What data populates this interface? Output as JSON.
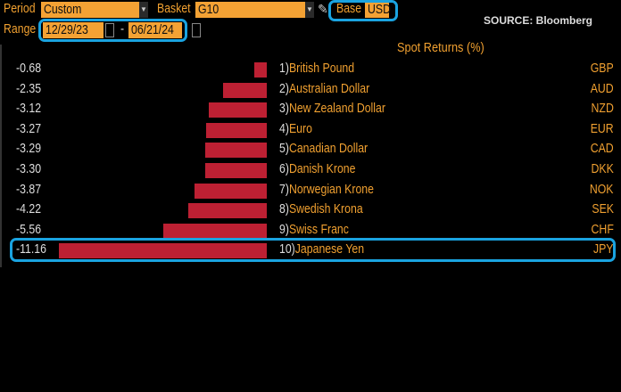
{
  "header": {
    "period_label": "Period",
    "period_value": "Custom",
    "basket_label": "Basket",
    "basket_value": "G10",
    "base_label": "Base",
    "base_value": "USD",
    "range_label": "Range",
    "range_start": "12/29/23",
    "range_separator": "-",
    "range_end": "06/21/24",
    "source": "SOURCE: Bloomberg"
  },
  "colors": {
    "bar": "#bd2033",
    "highlight": "#1aa3e0",
    "field": "#f4a234"
  },
  "chart_data": {
    "type": "bar",
    "title": "Spot Returns (%)",
    "orientation": "horizontal",
    "rows": [
      {
        "rank": "1)",
        "name": "British Pound",
        "code": "GBP",
        "value": -0.68,
        "label": "-0.68"
      },
      {
        "rank": "2)",
        "name": "Australian Dollar",
        "code": "AUD",
        "value": -2.35,
        "label": "-2.35"
      },
      {
        "rank": "3)",
        "name": "New Zealand Dollar",
        "code": "NZD",
        "value": -3.12,
        "label": "-3.12"
      },
      {
        "rank": "4)",
        "name": "Euro",
        "code": "EUR",
        "value": -3.27,
        "label": "-3.27"
      },
      {
        "rank": "5)",
        "name": "Canadian Dollar",
        "code": "CAD",
        "value": -3.29,
        "label": "-3.29"
      },
      {
        "rank": "6)",
        "name": "Danish Krone",
        "code": "DKK",
        "value": -3.3,
        "label": "-3.30"
      },
      {
        "rank": "7)",
        "name": "Norwegian Krone",
        "code": "NOK",
        "value": -3.87,
        "label": "-3.87"
      },
      {
        "rank": "8)",
        "name": "Swedish Krona",
        "code": "SEK",
        "value": -4.22,
        "label": "-4.22"
      },
      {
        "rank": "9)",
        "name": "Swiss Franc",
        "code": "CHF",
        "value": -5.56,
        "label": "-5.56"
      },
      {
        "rank": "10)",
        "name": "Japanese Yen",
        "code": "JPY",
        "value": -11.16,
        "label": "-11.16"
      }
    ],
    "highlighted": "JPY"
  }
}
